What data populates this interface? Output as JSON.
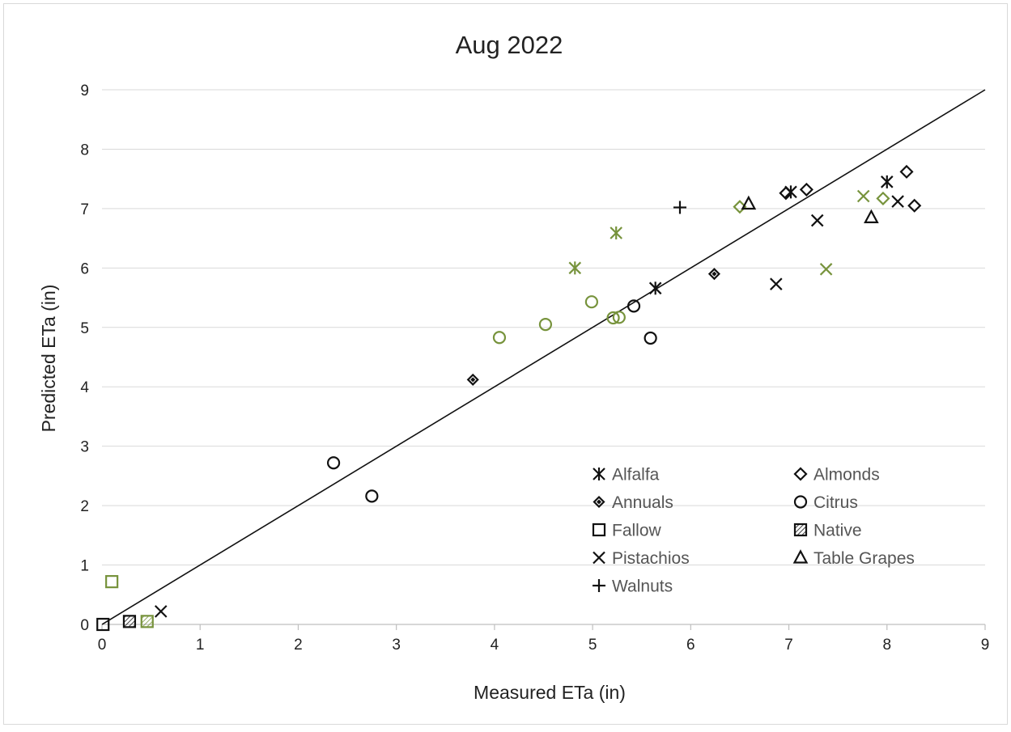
{
  "chart_data": {
    "type": "scatter",
    "title": "Aug 2022",
    "xlabel": "Measured ETa (in)",
    "ylabel": "Predicted ETa (in)",
    "xlim": [
      0,
      9
    ],
    "ylim": [
      0,
      9
    ],
    "xticks": [
      "0",
      "1",
      "2",
      "3",
      "4",
      "5",
      "6",
      "7",
      "8",
      "9"
    ],
    "yticks": [
      "0",
      "1",
      "2",
      "3",
      "4",
      "5",
      "6",
      "7",
      "8",
      "9"
    ],
    "grid": "horizontal",
    "reference_line": {
      "from": [
        0,
        0
      ],
      "to": [
        9,
        9
      ]
    },
    "legend_position": "bottom-right",
    "colors": {
      "black": "#111111",
      "green": "#77933c"
    },
    "series": [
      {
        "name": "Alfalfa",
        "marker": "asterisk",
        "points": [
          {
            "x": 7.02,
            "y": 7.28,
            "c": "black"
          },
          {
            "x": 5.64,
            "y": 5.66,
            "c": "black"
          },
          {
            "x": 8.0,
            "y": 7.45,
            "c": "black"
          },
          {
            "x": 5.24,
            "y": 6.59,
            "c": "green"
          },
          {
            "x": 4.82,
            "y": 6.0,
            "c": "green"
          }
        ]
      },
      {
        "name": "Almonds",
        "marker": "diamond",
        "points": [
          {
            "x": 8.2,
            "y": 7.62,
            "c": "black"
          },
          {
            "x": 8.28,
            "y": 7.05,
            "c": "black"
          },
          {
            "x": 6.97,
            "y": 7.26,
            "c": "black"
          },
          {
            "x": 7.18,
            "y": 7.32,
            "c": "black"
          },
          {
            "x": 6.5,
            "y": 7.03,
            "c": "green"
          },
          {
            "x": 7.96,
            "y": 7.17,
            "c": "green"
          }
        ]
      },
      {
        "name": "Annuals",
        "marker": "diamond-small",
        "points": [
          {
            "x": 3.78,
            "y": 4.12,
            "c": "black"
          },
          {
            "x": 6.24,
            "y": 5.9,
            "c": "black"
          }
        ]
      },
      {
        "name": "Citrus",
        "marker": "circle",
        "points": [
          {
            "x": 2.36,
            "y": 2.72,
            "c": "black"
          },
          {
            "x": 2.75,
            "y": 2.16,
            "c": "black"
          },
          {
            "x": 5.42,
            "y": 5.36,
            "c": "black"
          },
          {
            "x": 5.59,
            "y": 4.82,
            "c": "black"
          },
          {
            "x": 4.05,
            "y": 4.83,
            "c": "green"
          },
          {
            "x": 4.52,
            "y": 5.05,
            "c": "green"
          },
          {
            "x": 4.99,
            "y": 5.43,
            "c": "green"
          },
          {
            "x": 5.21,
            "y": 5.16,
            "c": "green"
          },
          {
            "x": 5.27,
            "y": 5.17,
            "c": "green"
          }
        ]
      },
      {
        "name": "Fallow",
        "marker": "square",
        "points": [
          {
            "x": 0.01,
            "y": 0.0,
            "c": "black"
          },
          {
            "x": 0.1,
            "y": 0.72,
            "c": "green"
          }
        ]
      },
      {
        "name": "Native",
        "marker": "square-hatched",
        "points": [
          {
            "x": 0.28,
            "y": 0.05,
            "c": "black"
          },
          {
            "x": 0.46,
            "y": 0.05,
            "c": "green"
          }
        ]
      },
      {
        "name": "Pistachios",
        "marker": "x",
        "points": [
          {
            "x": 0.6,
            "y": 0.22,
            "c": "black"
          },
          {
            "x": 6.87,
            "y": 5.73,
            "c": "black"
          },
          {
            "x": 7.29,
            "y": 6.8,
            "c": "black"
          },
          {
            "x": 8.11,
            "y": 7.12,
            "c": "black"
          },
          {
            "x": 7.76,
            "y": 7.21,
            "c": "green"
          },
          {
            "x": 7.38,
            "y": 5.98,
            "c": "green"
          }
        ]
      },
      {
        "name": "Table Grapes",
        "marker": "triangle",
        "points": [
          {
            "x": 6.59,
            "y": 7.08,
            "c": "black"
          },
          {
            "x": 7.84,
            "y": 6.85,
            "c": "black"
          }
        ]
      },
      {
        "name": "Walnuts",
        "marker": "plus",
        "points": [
          {
            "x": 5.89,
            "y": 7.02,
            "c": "black"
          }
        ]
      }
    ]
  }
}
